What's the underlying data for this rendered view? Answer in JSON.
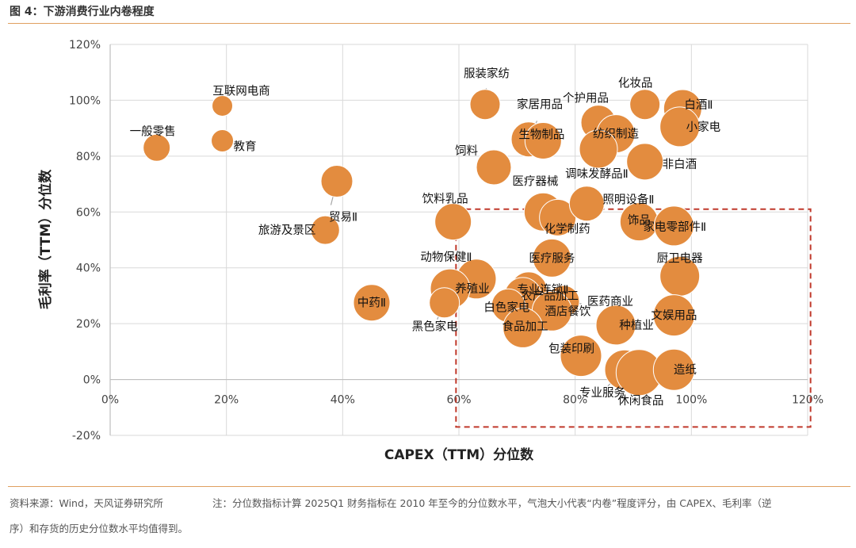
{
  "figure": {
    "title": "图 4：下游消费行业内卷程度",
    "source": "资料来源：Wind，天风证券研究所",
    "note_line1": "注：分位数指标计算 2025Q1 财务指标在 2010 年至今的分位数水平，气泡大小代表“内卷”程度评分，由 CAPEX、毛利率（逆",
    "note_line2": "序）和存货的历史分位数水平均值得到。"
  },
  "colors": {
    "bubble": "#E38C3F",
    "box": "#C0392B",
    "grid": "#d9d9d9",
    "axis": "#bfbfbf"
  },
  "chart_data": {
    "type": "scatter",
    "subtype": "bubble",
    "xlabel": "CAPEX（TTM）分位数",
    "ylabel": "毛利率（TTM）分位数",
    "xlim": [
      0,
      120
    ],
    "ylim": [
      -20,
      120
    ],
    "x_ticks": [
      "0%",
      "20%",
      "40%",
      "60%",
      "80%",
      "100%",
      "120%"
    ],
    "y_ticks": [
      "120%",
      "100%",
      "80%",
      "60%",
      "40%",
      "20%",
      "0%",
      "-20%"
    ],
    "highlight_box": {
      "x_range": [
        59.5,
        120.5
      ],
      "y_range": [
        -17,
        61
      ]
    },
    "points": [
      {
        "name": "一般零售",
        "x": 8,
        "y": 83,
        "size": 0.4
      },
      {
        "name": "互联网电商",
        "x": 19.3,
        "y": 98,
        "size": 0.2
      },
      {
        "name": "教育",
        "x": 19.3,
        "y": 85.5,
        "size": 0.25
      },
      {
        "name": "贸易Ⅱ",
        "x": 39,
        "y": 71,
        "size": 0.55
      },
      {
        "name": "旅游及景区",
        "x": 37,
        "y": 53.5,
        "size": 0.45
      },
      {
        "name": "中药Ⅱ",
        "x": 45,
        "y": 27.5,
        "size": 0.7
      },
      {
        "name": "服装家纺",
        "x": 64.5,
        "y": 98.5,
        "size": 0.5
      },
      {
        "name": "饲料",
        "x": 66,
        "y": 76,
        "size": 0.65
      },
      {
        "name": "家居用品",
        "x": 72,
        "y": 86,
        "size": 0.65
      },
      {
        "name": "生物制品",
        "x": 74.5,
        "y": 85.5,
        "size": 0.7
      },
      {
        "name": "饮料乳品",
        "x": 59,
        "y": 56.5,
        "size": 0.7
      },
      {
        "name": "医疗器械",
        "x": 74.5,
        "y": 60,
        "size": 0.75
      },
      {
        "name": "化学制药",
        "x": 77,
        "y": 58,
        "size": 0.7
      },
      {
        "name": "照明设备Ⅱ",
        "x": 82,
        "y": 63,
        "size": 0.65
      },
      {
        "name": "个护用品",
        "x": 84,
        "y": 92,
        "size": 0.65
      },
      {
        "name": "纺织制造",
        "x": 87,
        "y": 88,
        "size": 0.75
      },
      {
        "name": "调味发酵品Ⅱ",
        "x": 84,
        "y": 82.5,
        "size": 0.75
      },
      {
        "name": "化妆品",
        "x": 92,
        "y": 98.5,
        "size": 0.5
      },
      {
        "name": "白酒Ⅱ",
        "x": 98.5,
        "y": 97,
        "size": 0.75
      },
      {
        "name": "小家电",
        "x": 98,
        "y": 90.5,
        "size": 0.8
      },
      {
        "name": "非白酒",
        "x": 92,
        "y": 78,
        "size": 0.7
      },
      {
        "name": "饰品",
        "x": 91,
        "y": 56.5,
        "size": 0.75
      },
      {
        "name": "家电零部件Ⅱ",
        "x": 97,
        "y": 55,
        "size": 0.8
      },
      {
        "name": "动物保健Ⅱ",
        "x": 63,
        "y": 36,
        "size": 0.8
      },
      {
        "name": "医疗服务",
        "x": 76,
        "y": 43.5,
        "size": 0.75
      },
      {
        "name": "养殖业",
        "x": 58.5,
        "y": 32.5,
        "size": 0.8
      },
      {
        "name": "黑色家电",
        "x": 57.5,
        "y": 27.5,
        "size": 0.5
      },
      {
        "name": "专业连锁Ⅱ",
        "x": 72,
        "y": 32,
        "size": 0.7
      },
      {
        "name": "农产品加工",
        "x": 71,
        "y": 30,
        "size": 0.7
      },
      {
        "name": "白色家电",
        "x": 68.5,
        "y": 26.5,
        "size": 0.6
      },
      {
        "name": "医药商业",
        "x": 78,
        "y": 28,
        "size": 0.55
      },
      {
        "name": "酒店餐饮",
        "x": 76,
        "y": 24.5,
        "size": 0.8
      },
      {
        "name": "食品加工",
        "x": 71,
        "y": 18.5,
        "size": 0.8
      },
      {
        "name": "厨卫电器",
        "x": 98,
        "y": 37,
        "size": 0.8
      },
      {
        "name": "文娱用品",
        "x": 97,
        "y": 23,
        "size": 0.85
      },
      {
        "name": "种植业",
        "x": 87,
        "y": 19.5,
        "size": 0.8
      },
      {
        "name": "包装印刷",
        "x": 81,
        "y": 8.5,
        "size": 0.85
      },
      {
        "name": "专业服务",
        "x": 88.5,
        "y": 3.5,
        "size": 0.8
      },
      {
        "name": "休闲食品",
        "x": 91,
        "y": 2.5,
        "size": 1.0
      },
      {
        "name": "造纸",
        "x": 97,
        "y": 3.5,
        "size": 0.85
      }
    ]
  }
}
